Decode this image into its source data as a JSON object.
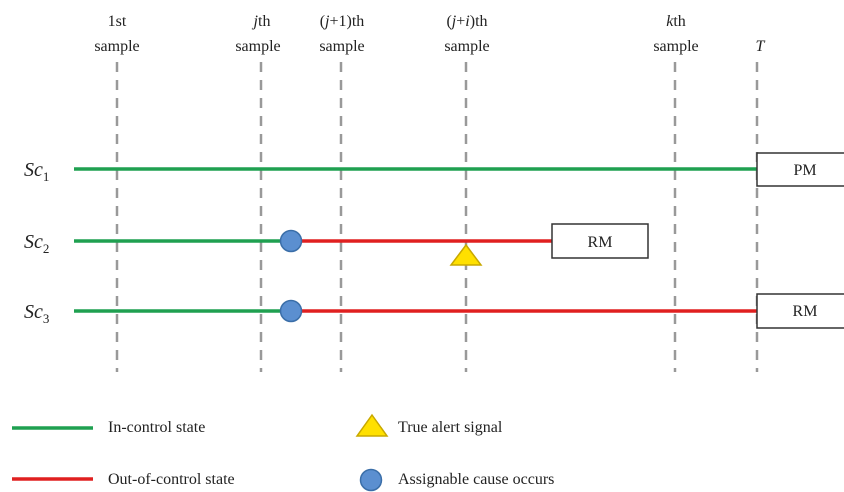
{
  "columns": [
    {
      "line1": "1st",
      "line2": "sample"
    },
    {
      "line1_italic": "j",
      "line1_rest": "th",
      "line2": "sample"
    },
    {
      "line1_pre": "(",
      "line1_italic": "j",
      "line1_rest": "+1)th",
      "line2": "sample"
    },
    {
      "line1_pre": "(",
      "line1_italic": "j",
      "line1_mid": "+",
      "line1_italic2": "i",
      "line1_rest": ")th",
      "line2": "sample"
    },
    {
      "line1_italic": "k",
      "line1_rest": "th",
      "line2": "sample"
    },
    {
      "line1_italic": "T"
    }
  ],
  "scenarios": [
    {
      "label_base": "Sc",
      "label_sub": "1",
      "box_label": "PM"
    },
    {
      "label_base": "Sc",
      "label_sub": "2",
      "box_label": "RM"
    },
    {
      "label_base": "Sc",
      "label_sub": "3",
      "box_label": "RM"
    }
  ],
  "legend": {
    "in_control": "In-control state",
    "out_of_control": "Out-of-control state",
    "alert": "True alert signal",
    "cause": "Assignable cause occurs"
  },
  "colors": {
    "in_control": "#1fa050",
    "out_of_control": "#e02020",
    "alert_fill": "#ffe000",
    "alert_stroke": "#c8a800",
    "cause_fill": "#5b8fd0",
    "cause_stroke": "#3a6ea8",
    "guide": "#999999"
  }
}
